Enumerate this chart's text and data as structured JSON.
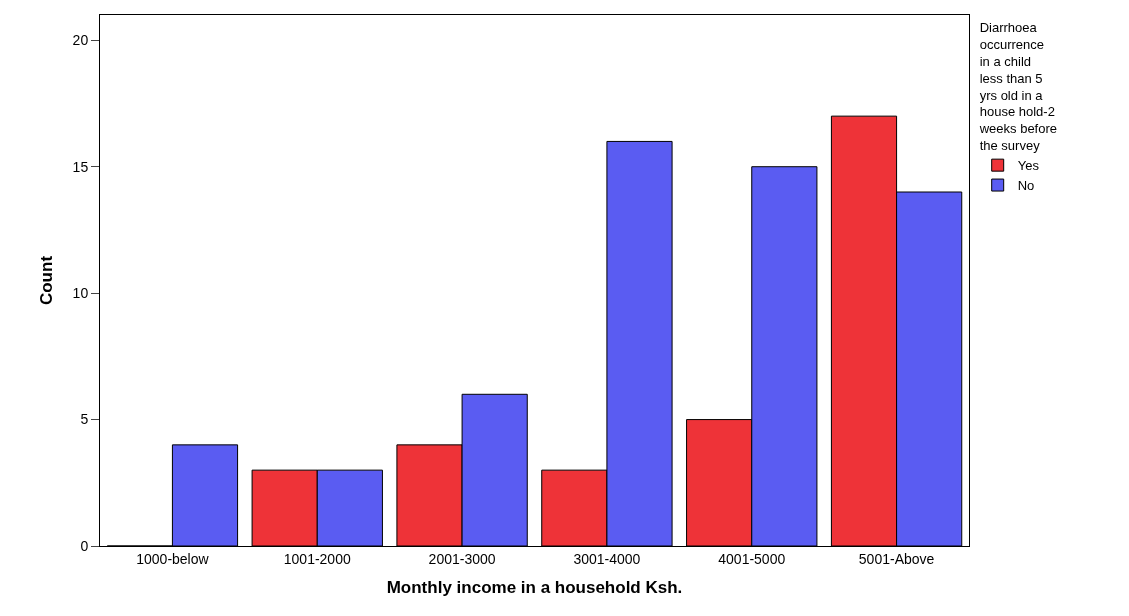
{
  "chart_data": {
    "type": "bar",
    "xlabel": "Monthly income in a household Ksh.",
    "ylabel": "Count",
    "legend_title": "Diarrhoea occurrence in a child less than 5 yrs old in a house hold-2 weeks before the survey",
    "categories": [
      "1000-below",
      "1001-2000",
      "2001-3000",
      "3001-4000",
      "4001-5000",
      "5001-Above"
    ],
    "series": [
      {
        "name": "Yes",
        "color": "#ee3338",
        "values": [
          0,
          3,
          4,
          3,
          5,
          17
        ]
      },
      {
        "name": "No",
        "color": "#5a5cf2",
        "values": [
          4,
          3,
          6,
          16,
          15,
          14
        ]
      }
    ],
    "ylim": [
      0,
      21
    ],
    "yticks": [
      0,
      5,
      10,
      15,
      20
    ],
    "legend": "top right"
  }
}
